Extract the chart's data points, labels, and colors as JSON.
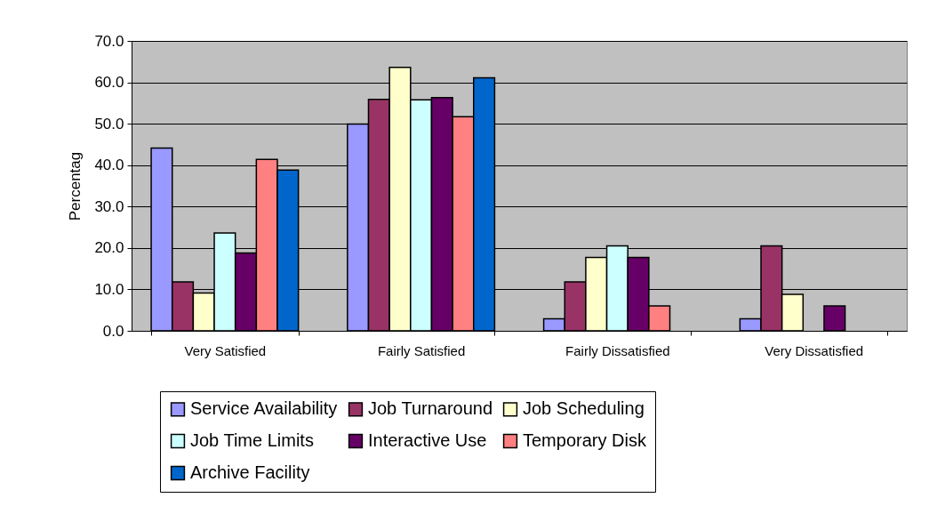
{
  "chart_data": {
    "type": "bar",
    "ylabel": "Percentag",
    "categories": [
      "Very Satisfied",
      "Fairly Satisfied",
      "Fairly Dissatisfied",
      "Very Dissatisfied"
    ],
    "series": [
      {
        "name": "Service Availability",
        "color": "#9999ff",
        "values": [
          44.1,
          49.9,
          2.9,
          2.9
        ]
      },
      {
        "name": "Job Turnaround",
        "color": "#993366",
        "values": [
          11.8,
          55.9,
          11.8,
          20.5
        ]
      },
      {
        "name": "Job Scheduling",
        "color": "#ffffcc",
        "values": [
          9.1,
          63.6,
          17.7,
          8.8
        ]
      },
      {
        "name": "Job Time Limits",
        "color": "#ccffff",
        "values": [
          23.6,
          55.8,
          20.5,
          0
        ]
      },
      {
        "name": "Interactive Use",
        "color": "#660066",
        "values": [
          18.8,
          56.3,
          17.7,
          6.0
        ]
      },
      {
        "name": "Temporary Disk",
        "color": "#ff8080",
        "values": [
          41.4,
          51.7,
          6.0,
          0
        ]
      },
      {
        "name": "Archive Facility",
        "color": "#0066cc",
        "values": [
          38.8,
          61.1,
          0,
          0
        ]
      }
    ],
    "ylim": [
      0,
      70
    ],
    "yticks": [
      {
        "value": 0,
        "label": "0.0"
      },
      {
        "value": 10,
        "label": "10.0"
      },
      {
        "value": 20,
        "label": "20.0"
      },
      {
        "value": 30,
        "label": "30.0"
      },
      {
        "value": 40,
        "label": "40.0"
      },
      {
        "value": 50,
        "label": "50.0"
      },
      {
        "value": 60,
        "label": "60.0"
      },
      {
        "value": 70,
        "label": "70.0"
      }
    ],
    "grid": "y",
    "legend": "bottom"
  }
}
